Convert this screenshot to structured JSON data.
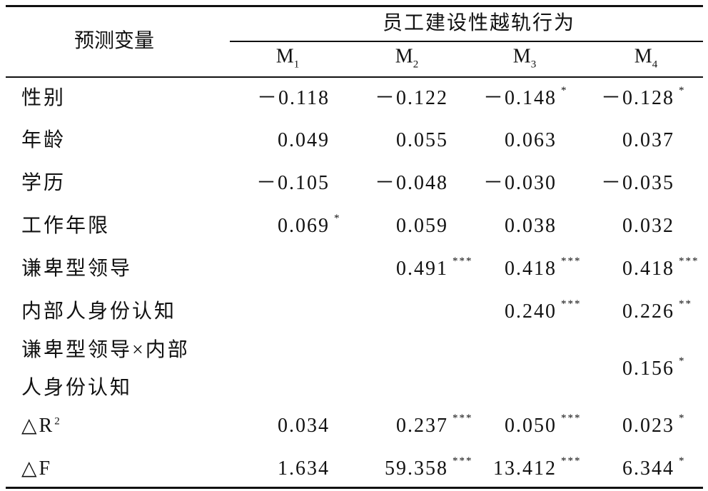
{
  "header": {
    "predictor": "预测变量",
    "dependent": "员工建设性越轨行为",
    "models": [
      {
        "base": "M",
        "sub": "1"
      },
      {
        "base": "M",
        "sub": "2"
      },
      {
        "base": "M",
        "sub": "3"
      },
      {
        "base": "M",
        "sub": "4"
      }
    ]
  },
  "rows": [
    {
      "label": [
        "性别"
      ],
      "cells": [
        {
          "value": "－0.118"
        },
        {
          "value": "－0.122"
        },
        {
          "value": "－0.148",
          "sig": "*"
        },
        {
          "value": "－0.128",
          "sig": "*"
        }
      ]
    },
    {
      "label": [
        "年龄"
      ],
      "cells": [
        {
          "value": "0.049"
        },
        {
          "value": "0.055"
        },
        {
          "value": "0.063"
        },
        {
          "value": "0.037"
        }
      ]
    },
    {
      "label": [
        "学历"
      ],
      "cells": [
        {
          "value": "－0.105"
        },
        {
          "value": "－0.048"
        },
        {
          "value": "－0.030"
        },
        {
          "value": "－0.035"
        }
      ]
    },
    {
      "label": [
        "工作年限"
      ],
      "cells": [
        {
          "value": "0.069",
          "sig": "*"
        },
        {
          "value": "0.059"
        },
        {
          "value": "0.038"
        },
        {
          "value": "0.032"
        }
      ]
    },
    {
      "label": [
        "谦卑型领导"
      ],
      "cells": [
        null,
        {
          "value": "0.491",
          "sig": "***"
        },
        {
          "value": "0.418",
          "sig": "***"
        },
        {
          "value": "0.418",
          "sig": "***"
        }
      ]
    },
    {
      "label": [
        "内部人身份认知"
      ],
      "cells": [
        null,
        null,
        {
          "value": "0.240",
          "sig": "***"
        },
        {
          "value": "0.226",
          "sig": "**"
        }
      ]
    },
    {
      "label": [
        "谦卑型领导×内部",
        "人身份认知"
      ],
      "cells": [
        null,
        null,
        null,
        {
          "value": "0.156",
          "sig": "*"
        }
      ]
    },
    {
      "label": [
        "△R"
      ],
      "label_sup": "2",
      "cells": [
        {
          "value": "0.034"
        },
        {
          "value": "0.237",
          "sig": "***"
        },
        {
          "value": "0.050",
          "sig": "***"
        },
        {
          "value": "0.023",
          "sig": "*"
        }
      ]
    },
    {
      "label": [
        "△F"
      ],
      "cells": [
        {
          "value": "1.634"
        },
        {
          "value": "59.358",
          "sig": "***"
        },
        {
          "value": "13.412",
          "sig": "***"
        },
        {
          "value": "6.344",
          "sig": "*"
        }
      ]
    }
  ]
}
